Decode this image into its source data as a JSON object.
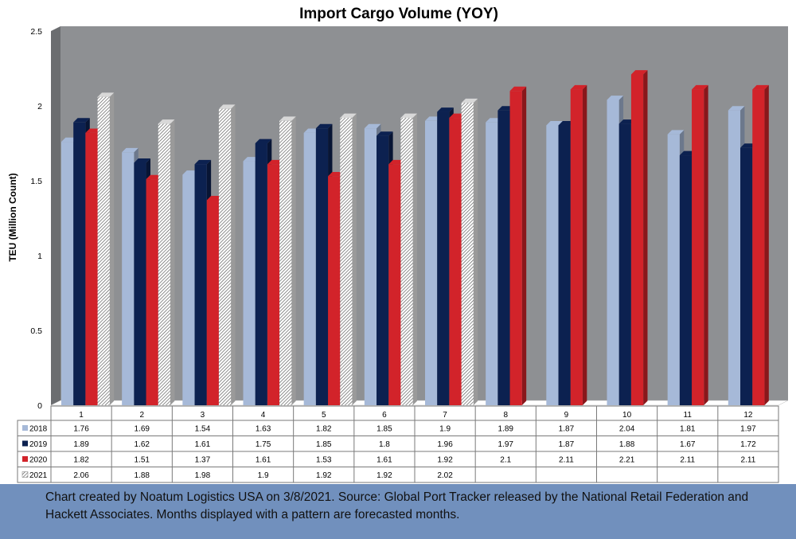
{
  "chart_data": {
    "type": "bar",
    "title": "Import Cargo Volume (YOY)",
    "ylabel": "TEU (Million Count)",
    "xlabel": "",
    "ylim": [
      0,
      2.5
    ],
    "yticks": [
      "0",
      "0.5",
      "1",
      "1.5",
      "2",
      "2.5"
    ],
    "categories": [
      "1",
      "2",
      "3",
      "4",
      "5",
      "6",
      "7",
      "8",
      "9",
      "10",
      "11",
      "12"
    ],
    "series": [
      {
        "name": "2018",
        "color": "#a6b9d8",
        "pattern": false,
        "values": [
          1.76,
          1.69,
          1.54,
          1.63,
          1.82,
          1.85,
          1.9,
          1.89,
          1.87,
          2.04,
          1.81,
          1.97
        ],
        "labels": [
          "1.76",
          "1.69",
          "1.54",
          "1.63",
          "1.82",
          "1.85",
          "1.9",
          "1.89",
          "1.87",
          "2.04",
          "1.81",
          "1.97"
        ]
      },
      {
        "name": "2019",
        "color": "#0c2150",
        "pattern": false,
        "values": [
          1.89,
          1.62,
          1.61,
          1.75,
          1.85,
          1.8,
          1.96,
          1.97,
          1.87,
          1.88,
          1.67,
          1.72
        ],
        "labels": [
          "1.89",
          "1.62",
          "1.61",
          "1.75",
          "1.85",
          "1.8",
          "1.96",
          "1.97",
          "1.87",
          "1.88",
          "1.67",
          "1.72"
        ]
      },
      {
        "name": "2020",
        "color": "#d2232a",
        "pattern": false,
        "values": [
          1.82,
          1.51,
          1.37,
          1.61,
          1.53,
          1.61,
          1.92,
          2.1,
          2.11,
          2.21,
          2.11,
          2.11
        ],
        "labels": [
          "1.82",
          "1.51",
          "1.37",
          "1.61",
          "1.53",
          "1.61",
          "1.92",
          "2.1",
          "2.11",
          "2.21",
          "2.11",
          "2.11"
        ]
      },
      {
        "name": "2021",
        "color": "#1f4e80",
        "pattern": true,
        "values": [
          2.06,
          1.88,
          1.98,
          1.9,
          1.92,
          1.92,
          2.02,
          null,
          null,
          null,
          null,
          null
        ],
        "labels": [
          "2.06",
          "1.88",
          "1.98",
          "1.9",
          "1.92",
          "1.92",
          "2.02",
          "",
          "",
          "",
          "",
          ""
        ]
      }
    ],
    "legend": "data-table",
    "grid": false,
    "colors": {
      "plot_background": "#8e9093",
      "wall_side": "#6b6d70",
      "floor": "#ffffff"
    }
  },
  "footer": {
    "text": "Chart created by Noatum Logistics USA on 3/8/2021. Source: Global Port Tracker released by the National Retail Federation and Hackett Associates. Months displayed with a pattern are forecasted months.",
    "background": "#7190bd"
  }
}
